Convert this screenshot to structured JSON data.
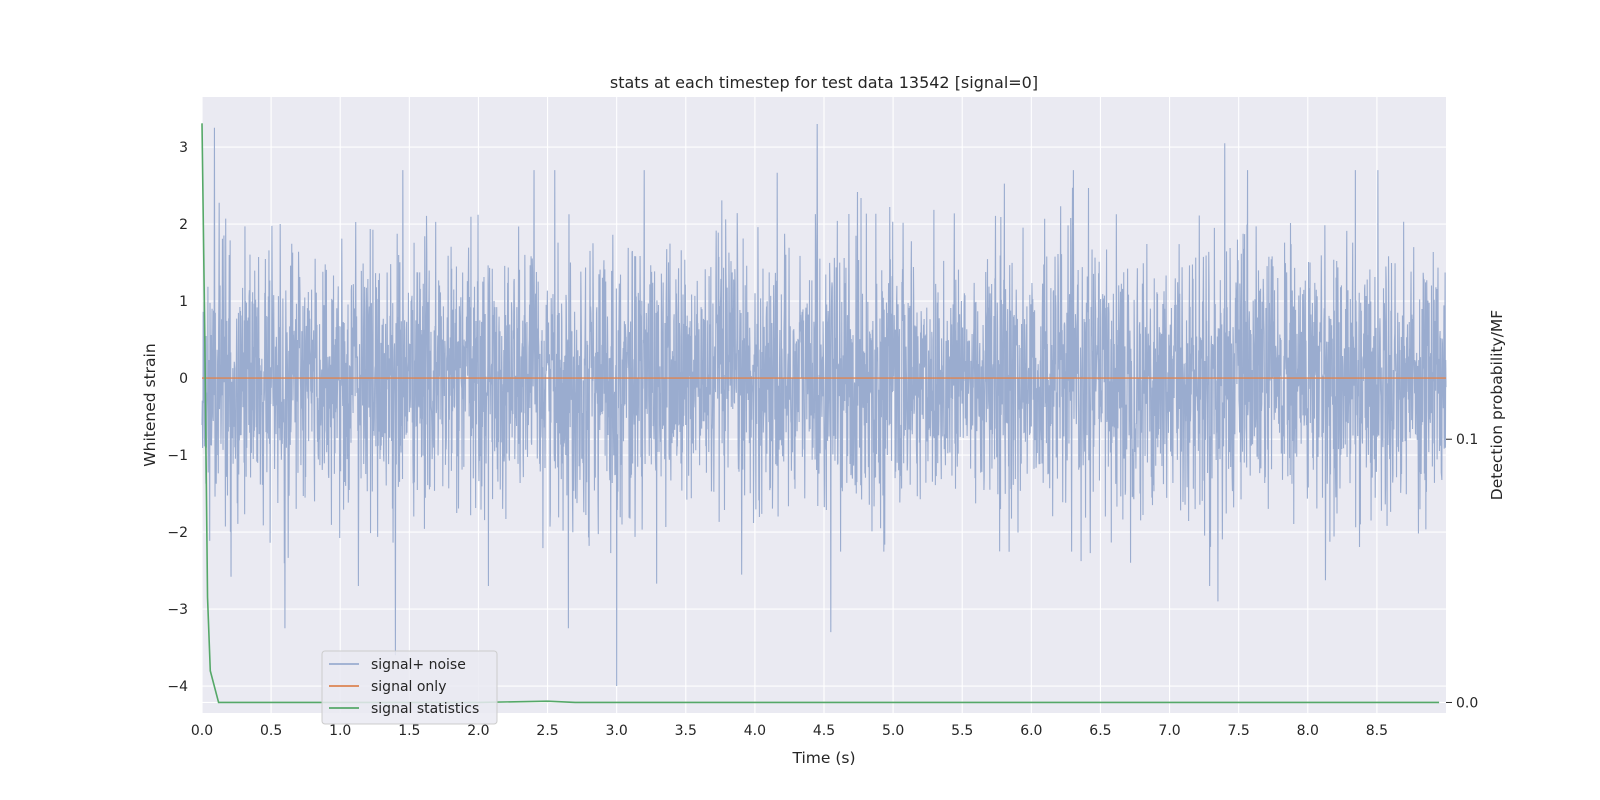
{
  "chart_data": {
    "type": "line",
    "title": "stats at each timestep for test data 13542 [signal=0]",
    "xlabel": "Time (s)",
    "ylabel": "Whitened strain",
    "ylabel_right": "Detection probability/MF",
    "xlim": [
      0,
      9.0
    ],
    "ylim": [
      -4.35,
      3.65
    ],
    "ylim_right": [
      -0.004,
      0.23
    ],
    "x_ticks": [
      "0.0",
      "0.5",
      "1.0",
      "1.5",
      "2.0",
      "2.5",
      "3.0",
      "3.5",
      "4.0",
      "4.5",
      "5.0",
      "5.5",
      "6.0",
      "6.5",
      "7.0",
      "7.5",
      "8.0",
      "8.5"
    ],
    "y_ticks": [
      "−4",
      "−3",
      "−2",
      "−1",
      "0",
      "1",
      "2",
      "3"
    ],
    "y_ticks_right": [
      "0.0",
      "0.1"
    ],
    "grid": true,
    "legend_position": "lower-left",
    "series": [
      {
        "name": "signal+ noise",
        "axis": "left",
        "color": "#9aaccf",
        "description": "whitened noise, roughly ±1.3 typical amplitude with spikes to about ±3",
        "x_range": [
          0,
          9.0
        ],
        "peaks": [
          {
            "x": 0.09,
            "y": 3.25
          },
          {
            "x": 4.45,
            "y": 3.3
          },
          {
            "x": 7.4,
            "y": 3.05
          },
          {
            "x": 1.4,
            "y": -3.6
          },
          {
            "x": 3.0,
            "y": -4.0
          },
          {
            "x": 4.55,
            "y": -3.3
          },
          {
            "x": 0.6,
            "y": -3.25
          },
          {
            "x": 2.65,
            "y": -3.25
          },
          {
            "x": 7.35,
            "y": -2.9
          }
        ]
      },
      {
        "name": "signal only",
        "axis": "left",
        "color": "#dd8452",
        "x": [
          0,
          9.0
        ],
        "y": [
          0,
          0
        ]
      },
      {
        "name": "signal statistics",
        "axis": "right",
        "color": "#55a868",
        "x": [
          0.0,
          0.02,
          0.04,
          0.06,
          0.12,
          0.5,
          1.0,
          2.0,
          2.5,
          2.7,
          3.0,
          4.0,
          5.0,
          6.0,
          7.0,
          8.0,
          8.95
        ],
        "y": [
          0.22,
          0.14,
          0.04,
          0.012,
          0.0,
          0.0,
          0.0,
          0.0,
          0.0005,
          0.0,
          0.0,
          0.0,
          0.0,
          0.0,
          0.0,
          0.0,
          0.0
        ]
      }
    ]
  }
}
